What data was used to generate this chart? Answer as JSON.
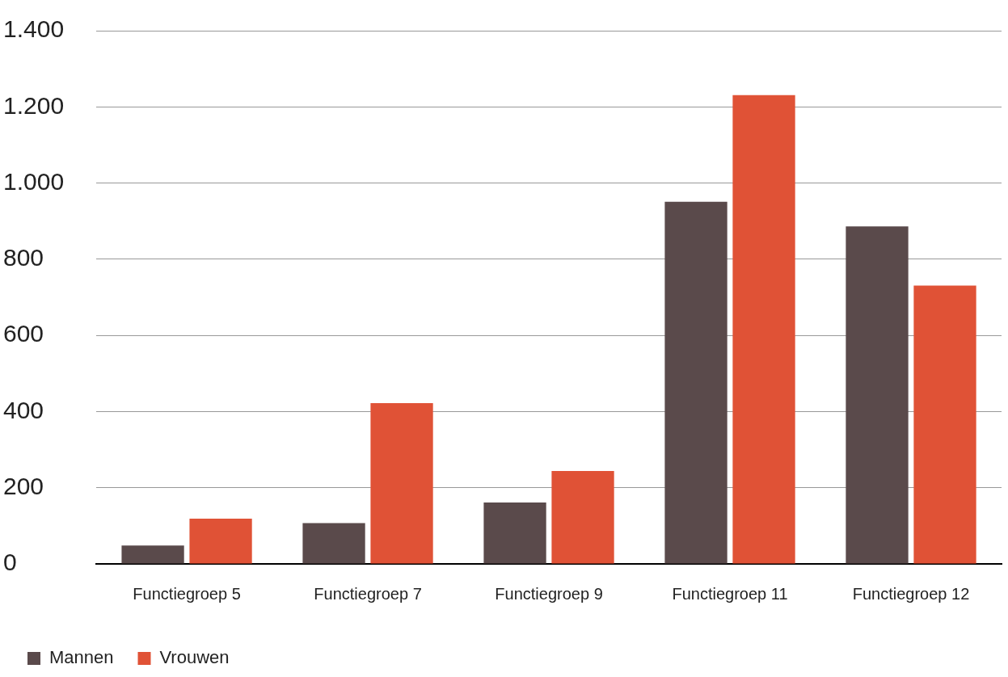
{
  "chart_data": {
    "type": "bar",
    "categories": [
      "Functiegroep 5",
      "Functiegroep 7",
      "Functiegroep 9",
      "Functiegroep 11",
      "Functiegroep 12"
    ],
    "series": [
      {
        "name": "Mannen",
        "color": "#5a4a4b",
        "values": [
          48,
          107,
          161,
          951,
          886
        ]
      },
      {
        "name": "Vrouwen",
        "color": "#e05236",
        "values": [
          119,
          422,
          244,
          1231,
          731
        ]
      }
    ],
    "ylim": [
      0,
      1400
    ],
    "yticks": [
      {
        "value": 0,
        "label": "0"
      },
      {
        "value": 200,
        "label": "200"
      },
      {
        "value": 400,
        "label": "400"
      },
      {
        "value": 600,
        "label": "600"
      },
      {
        "value": 800,
        "label": "800"
      },
      {
        "value": 1000,
        "label": "1.000"
      },
      {
        "value": 1200,
        "label": "1.200"
      },
      {
        "value": 1400,
        "label": "1.400"
      }
    ],
    "grid": "y",
    "legend": "bottom left"
  }
}
